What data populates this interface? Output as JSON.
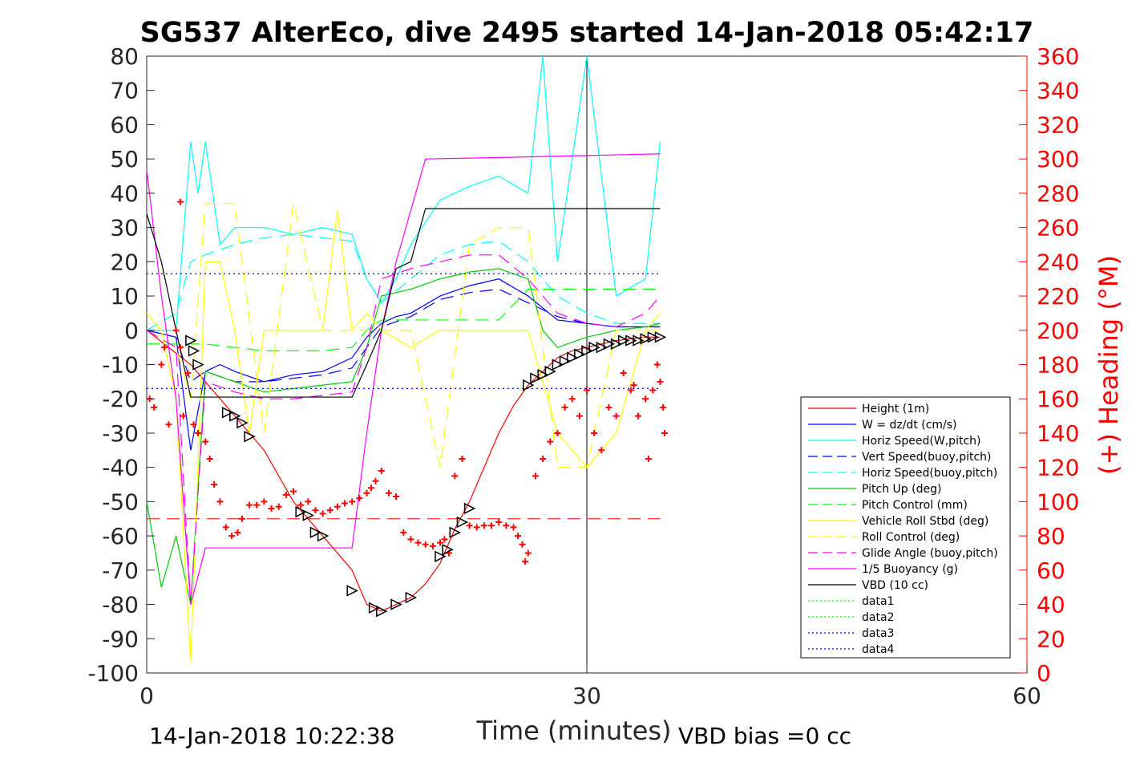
{
  "chart_data": {
    "type": "line",
    "title": "SG537 AlterEco, dive 2495 started 14-Jan-2018 05:42:17",
    "xlabel": "Time (minutes)",
    "ylabel_right": "(+) Heading (°M)",
    "xlim": [
      0,
      60
    ],
    "ylim": [
      -100,
      80
    ],
    "ylim_right": [
      0,
      360
    ],
    "x_ticks": [
      "0",
      "30",
      "60"
    ],
    "y_ticks": [
      "80",
      "70",
      "60",
      "50",
      "40",
      "30",
      "20",
      "10",
      "0",
      "-10",
      "-20",
      "-30",
      "-40",
      "-50",
      "-60",
      "-70",
      "-80",
      "-90",
      "-100"
    ],
    "y_right_ticks": [
      "360",
      "340",
      "320",
      "300",
      "280",
      "260",
      "240",
      "220",
      "200",
      "180",
      "160",
      "140",
      "120",
      "100",
      "80",
      "60",
      "40",
      "20",
      "0"
    ],
    "footer_left": "14-Jan-2018 10:22:38",
    "footer_right": "VBD bias =0 cc",
    "legend_position": "lower-right",
    "series": [
      {
        "name": "Height (1m)",
        "color": "#ff0000",
        "style": "solid",
        "x": [
          0,
          3,
          4,
          6,
          8,
          10,
          12,
          14,
          15,
          16,
          17,
          18,
          19,
          20,
          21,
          22,
          23,
          24,
          25,
          26,
          27,
          28,
          29,
          30,
          31,
          32,
          33,
          34,
          35
        ],
        "y": [
          0,
          -10,
          -15,
          -25,
          -35,
          -50,
          -60,
          -70,
          -80,
          -82,
          -80,
          -78,
          -74,
          -68,
          -58,
          -50,
          -40,
          -30,
          -22,
          -16,
          -12,
          -8,
          -6,
          -5,
          -4,
          -3,
          -2.5,
          -2,
          -2
        ]
      },
      {
        "name": "W = dz/dt (cm/s)",
        "color": "#0000ff",
        "style": "solid",
        "x": [
          0,
          2,
          3,
          4,
          5,
          6,
          8,
          10,
          12,
          13,
          14,
          15,
          16,
          17,
          18,
          20,
          22,
          24,
          26,
          28,
          30,
          32,
          34,
          35
        ],
        "y": [
          0,
          -2,
          -35,
          -12,
          -10,
          -12,
          -15,
          -13,
          -12,
          -10,
          -8,
          -2,
          2,
          4,
          5,
          10,
          13,
          15,
          10,
          3,
          2,
          1,
          1,
          1
        ]
      },
      {
        "name": "Horiz Speed(W,pitch)",
        "color": "#00ffff",
        "style": "solid",
        "x": [
          0,
          2,
          3,
          3.5,
          4,
          5,
          6,
          8,
          10,
          12,
          14,
          15,
          16,
          17,
          18,
          20,
          22,
          24,
          26,
          27,
          28,
          30,
          32,
          34,
          35
        ],
        "y": [
          0,
          0,
          55,
          40,
          55,
          25,
          30,
          30,
          28,
          30,
          28,
          15,
          8,
          15,
          25,
          38,
          42,
          45,
          40,
          80,
          20,
          80,
          10,
          15,
          55
        ]
      },
      {
        "name": "Vert Speed(buoy,pitch)",
        "color": "#0000ff",
        "style": "dashed",
        "x": [
          0,
          2,
          3,
          4,
          6,
          8,
          10,
          12,
          14,
          15,
          16,
          18,
          20,
          22,
          24,
          26,
          28,
          30,
          32,
          34,
          35
        ],
        "y": [
          0,
          -2,
          -15,
          -12,
          -15,
          -15,
          -14,
          -13,
          -11,
          -5,
          1,
          4,
          9,
          11,
          12,
          8,
          4,
          2,
          1,
          1,
          1
        ]
      },
      {
        "name": "Horiz Speed(buoy,pitch)",
        "color": "#00ffff",
        "style": "dashed",
        "x": [
          0,
          2,
          3,
          4,
          6,
          8,
          10,
          12,
          14,
          15,
          16,
          18,
          20,
          22,
          24,
          26,
          28,
          30,
          32,
          34,
          35
        ],
        "y": [
          0,
          5,
          20,
          22,
          25,
          27,
          28,
          27,
          26,
          15,
          8,
          15,
          22,
          25,
          26,
          20,
          10,
          5,
          2,
          2,
          2
        ]
      },
      {
        "name": "Pitch Up (deg)",
        "color": "#00cc00",
        "style": "solid",
        "x": [
          0,
          1,
          2,
          3,
          4,
          6,
          8,
          10,
          12,
          14,
          15,
          16,
          18,
          20,
          22,
          24,
          26,
          27,
          28,
          30,
          32,
          34,
          35
        ],
        "y": [
          -50,
          -75,
          -60,
          -80,
          -12,
          -15,
          -18,
          -17,
          -16,
          -15,
          -5,
          10,
          12,
          15,
          17,
          18,
          15,
          0,
          -5,
          -2,
          0,
          1,
          2
        ]
      },
      {
        "name": "Pitch Control (mm)",
        "color": "#00ff00",
        "style": "dashed",
        "x": [
          0,
          2,
          3,
          4,
          8,
          12,
          14,
          15,
          16,
          18,
          20,
          24,
          26,
          27,
          30,
          35
        ],
        "y": [
          -4,
          -4,
          -4,
          -4,
          -6,
          -6,
          -5,
          0,
          3,
          3,
          3,
          3,
          12,
          12,
          12,
          12
        ]
      },
      {
        "name": "Vehicle Roll Stbd (deg)",
        "color": "#ffff00",
        "style": "solid",
        "x": [
          0,
          1,
          2,
          3,
          4,
          5,
          6,
          7,
          8,
          10,
          12,
          13,
          14,
          15,
          16,
          18,
          20,
          22,
          24,
          26,
          28,
          30,
          32,
          34,
          35
        ],
        "y": [
          5,
          0,
          -20,
          -97,
          20,
          20,
          0,
          -30,
          0,
          0,
          0,
          35,
          0,
          5,
          0,
          -5,
          0,
          0,
          0,
          0,
          -30,
          -40,
          -30,
          0,
          5
        ]
      },
      {
        "name": "Roll Control (deg)",
        "color": "#ffff00",
        "style": "dashed",
        "x": [
          0,
          2,
          3,
          4,
          6,
          8,
          10,
          12,
          14,
          16,
          18,
          20,
          22,
          24,
          26,
          28,
          30,
          32,
          35
        ],
        "y": [
          0,
          -5,
          -20,
          37,
          37,
          -30,
          37,
          0,
          0,
          0,
          0,
          -40,
          25,
          30,
          30,
          -40,
          -40,
          0,
          0
        ]
      },
      {
        "name": "Glide Angle (buoy,pitch)",
        "color": "#ff00ff",
        "style": "dashed",
        "x": [
          0,
          2,
          3,
          4,
          6,
          8,
          10,
          12,
          14,
          15,
          16,
          18,
          20,
          22,
          24,
          26,
          28,
          30,
          32,
          34,
          35
        ],
        "y": [
          0,
          -5,
          -80,
          -15,
          -18,
          -20,
          -20,
          -19,
          -18,
          -5,
          15,
          18,
          20,
          22,
          22,
          15,
          5,
          2,
          1,
          5,
          10
        ]
      },
      {
        "name": "1/5 Buoyancy (g)",
        "color": "#ff00ff",
        "style": "solid",
        "x": [
          0,
          1,
          2,
          3,
          4,
          14,
          15,
          16,
          17,
          18,
          19,
          25,
          30,
          35
        ],
        "y": [
          47,
          10,
          -20,
          -80,
          -63.5,
          -63.5,
          -30,
          0,
          20,
          35,
          50,
          50.5,
          51,
          51.5
        ]
      },
      {
        "name": "VBD (10 cc)",
        "color": "#000000",
        "style": "solid",
        "x": [
          0,
          1,
          2,
          3,
          14,
          15,
          16,
          17,
          18,
          19,
          35
        ],
        "y": [
          34,
          20,
          0,
          -19.5,
          -19.5,
          -10,
          0,
          18,
          20,
          35.5,
          35.5
        ]
      },
      {
        "name": "data1",
        "color": "#00ff00",
        "style": "dotted",
        "x": [],
        "y": []
      },
      {
        "name": "data2",
        "color": "#00ff00",
        "style": "dotted",
        "x": [],
        "y": []
      },
      {
        "name": "data3",
        "color": "#0000ff",
        "style": "dotted",
        "x": [
          0,
          35
        ],
        "y": [
          16.5,
          16.5
        ]
      },
      {
        "name": "data4",
        "color": "#0000ff",
        "style": "dotted",
        "x": [
          0,
          35
        ],
        "y": [
          -17,
          -17
        ]
      }
    ],
    "extra_lines": [
      {
        "color": "#ff0000",
        "style": "dashed",
        "x": [
          0,
          35
        ],
        "y": [
          -55,
          -55
        ]
      }
    ],
    "heading_points": {
      "color": "#ff0000",
      "marker": "+",
      "x": [
        0.2,
        0.5,
        1,
        1.2,
        1.5,
        2,
        2.3,
        2.5,
        2.8,
        3.2,
        3.5,
        4,
        4.3,
        4.6,
        5,
        5.4,
        5.8,
        6.2,
        6.5,
        7,
        7.5,
        8,
        8.5,
        9,
        9.5,
        10,
        10.5,
        11,
        11.5,
        12,
        12.5,
        13,
        13.5,
        14,
        14.5,
        15,
        15.3,
        15.6,
        16,
        16.5,
        17,
        17.5,
        18,
        18.5,
        19,
        19.5,
        20,
        20.3,
        20.6,
        21,
        21.5,
        22,
        22.5,
        23,
        23.5,
        24,
        24.5,
        25,
        25.3,
        25.6,
        26,
        26.5,
        27,
        27.5,
        28,
        28.5,
        29,
        29.5,
        30,
        30.5,
        31,
        31.5,
        32,
        32.5,
        33,
        33.5,
        34,
        34.5,
        35,
        35.2,
        25.8,
        2.3,
        35.3,
        34.8,
        34.2,
        33.2
      ],
      "y": [
        160,
        155,
        180,
        190,
        145,
        200,
        190,
        150,
        175,
        145,
        140,
        135,
        125,
        110,
        100,
        85,
        80,
        82,
        90,
        98,
        98,
        100,
        96,
        97,
        104,
        106,
        98,
        100,
        95,
        93,
        95,
        97,
        99,
        100,
        102,
        105,
        108,
        112,
        118,
        105,
        103,
        82,
        78,
        76,
        75,
        74,
        76,
        78,
        70,
        115,
        125,
        86,
        85,
        86,
        86,
        88,
        86,
        85,
        80,
        75,
        70,
        115,
        125,
        135,
        140,
        155,
        160,
        150,
        165,
        140,
        130,
        155,
        150,
        175,
        165,
        150,
        160,
        165,
        170,
        155,
        65,
        275,
        140,
        180,
        125,
        168
      ]
    },
    "triangle_markers": {
      "color": "#000000",
      "x": [
        3,
        3.2,
        3.5,
        5.5,
        6,
        6.5,
        7,
        10.5,
        11,
        11.5,
        12,
        14,
        15.5,
        16,
        17,
        18,
        20,
        20.5,
        21,
        21.5,
        22,
        26,
        26.5,
        27,
        27.5,
        28,
        28.5,
        29,
        29.5,
        30,
        30.5,
        31,
        31.5,
        32,
        32.5,
        33,
        33.5,
        34,
        34.5,
        35
      ],
      "y": [
        -3,
        -6,
        -10,
        -24,
        -25,
        -27,
        -31,
        -53,
        -54,
        -59,
        -60,
        -76,
        -81,
        -82,
        -80,
        -78,
        -66,
        -64,
        -59,
        -56,
        -52,
        -16,
        -14,
        -13,
        -12,
        -10,
        -9,
        -8,
        -7,
        -6,
        -5,
        -5,
        -4,
        -4,
        -3,
        -3,
        -3,
        -2.5,
        -2,
        -2
      ]
    }
  }
}
